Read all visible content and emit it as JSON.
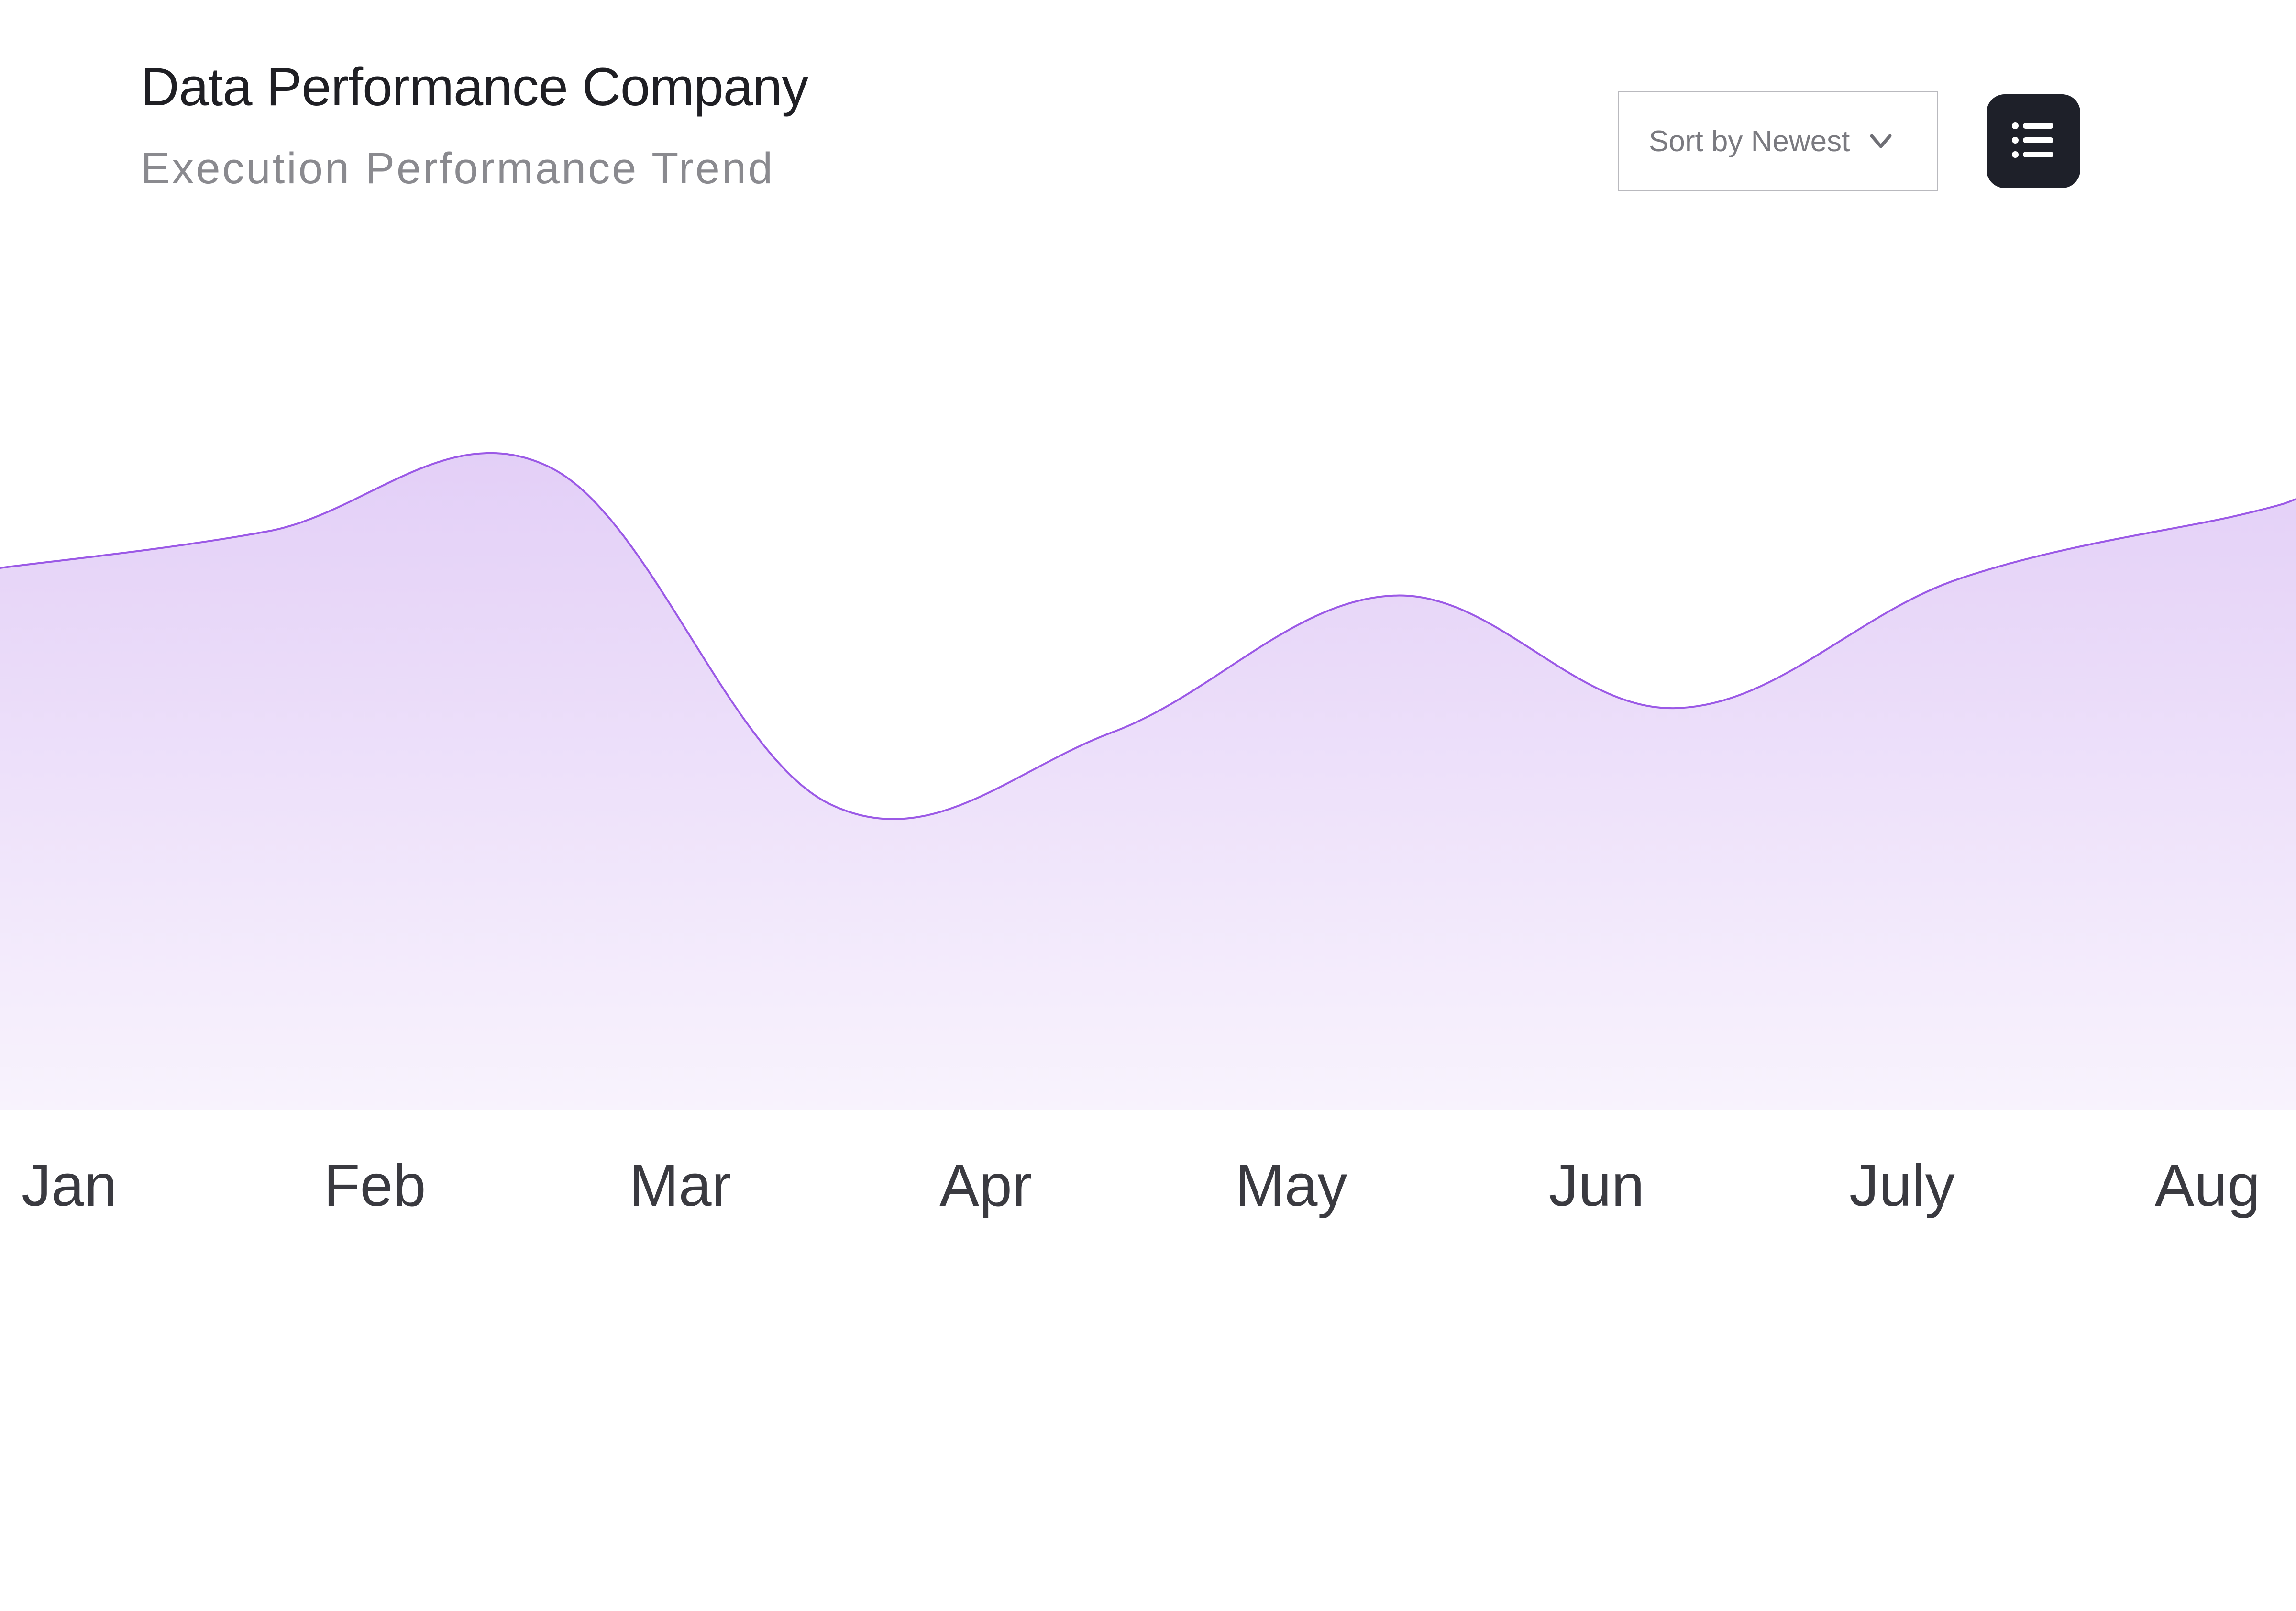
{
  "header": {
    "title": "Data Performance Company",
    "subtitle": "Execution Performance Trend"
  },
  "controls": {
    "sort_label": "Sort by Newest",
    "sort_icon": "chevron-down-icon",
    "menu_icon": "list-icon"
  },
  "colors": {
    "line": "#9b59e6",
    "fill_top": "#e3cff7",
    "fill_bottom": "#f8f3fd",
    "menu_button": "#1e2029"
  },
  "chart_data": {
    "type": "area",
    "title": "Execution Performance Trend",
    "categories": [
      "Jan",
      "Feb",
      "Mar",
      "Apr",
      "May",
      "Jun",
      "July",
      "Aug"
    ],
    "values": [
      72,
      80,
      38,
      47,
      64,
      50,
      66,
      74
    ],
    "ylim": [
      0,
      100
    ],
    "grid": false,
    "legend": "none",
    "xlabel": "",
    "ylabel": ""
  }
}
